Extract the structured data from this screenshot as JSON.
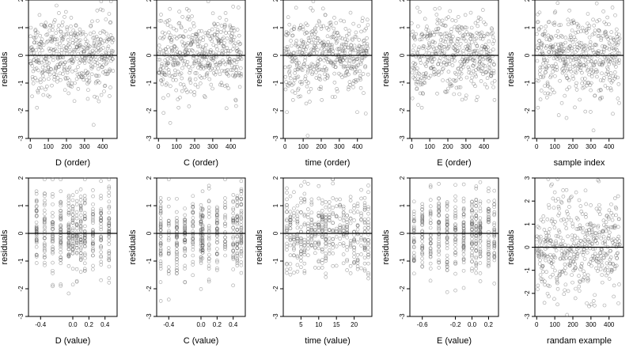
{
  "chart_data": [
    {
      "type": "scatter",
      "xlabel": "D (order)",
      "ylabel": "residuals",
      "xlim": [
        -10,
        480
      ],
      "ylim": [
        -3,
        2
      ],
      "xticks": [
        0,
        100,
        200,
        300,
        400
      ],
      "xtick_labels": [
        "0",
        "100",
        "200",
        "300",
        "400"
      ],
      "yticks": [
        -3,
        -2,
        -1,
        0,
        1,
        2
      ],
      "ytick_labels": [
        "-3",
        "-2",
        "-1",
        "0",
        "1",
        "2"
      ],
      "hline": 0,
      "x_kind": "index",
      "n": 460,
      "cols": [],
      "y": [],
      "xvals": []
    },
    {
      "type": "scatter",
      "xlabel": "C (order)",
      "ylabel": "residuals",
      "xlim": [
        -10,
        480
      ],
      "ylim": [
        -3,
        2
      ],
      "xticks": [
        0,
        100,
        200,
        300,
        400
      ],
      "xtick_labels": [
        "0",
        "100",
        "200",
        "300",
        "400"
      ],
      "yticks": [
        -3,
        -2,
        -1,
        0,
        1,
        2
      ],
      "ytick_labels": [
        "-3",
        "-2",
        "-1",
        "0",
        "1",
        "2"
      ],
      "hline": 0,
      "x_kind": "index",
      "n": 460,
      "cols": [],
      "y": [],
      "xvals": []
    },
    {
      "type": "scatter",
      "xlabel": "time (order)",
      "ylabel": "residuals",
      "xlim": [
        -10,
        480
      ],
      "ylim": [
        -3,
        2
      ],
      "xticks": [
        0,
        100,
        200,
        300,
        400
      ],
      "xtick_labels": [
        "0",
        "100",
        "200",
        "300",
        "400"
      ],
      "yticks": [
        -3,
        -2,
        -1,
        0,
        1,
        2
      ],
      "ytick_labels": [
        "-3",
        "-2",
        "-1",
        "0",
        "1",
        "2"
      ],
      "hline": 0,
      "x_kind": "index",
      "n": 460,
      "cols": [],
      "y": [],
      "xvals": []
    },
    {
      "type": "scatter",
      "xlabel": "E (order)",
      "ylabel": "residuals",
      "xlim": [
        -10,
        480
      ],
      "ylim": [
        -3,
        2
      ],
      "xticks": [
        0,
        100,
        200,
        300,
        400
      ],
      "xtick_labels": [
        "0",
        "100",
        "200",
        "300",
        "400"
      ],
      "yticks": [
        -3,
        -2,
        -1,
        0,
        1,
        2
      ],
      "ytick_labels": [
        "-3",
        "-2",
        "-1",
        "0",
        "1",
        "2"
      ],
      "hline": 0,
      "x_kind": "index",
      "n": 460,
      "cols": [],
      "y": [],
      "xvals": []
    },
    {
      "type": "scatter",
      "xlabel": "sample index",
      "ylabel": "residuals",
      "xlim": [
        -10,
        480
      ],
      "ylim": [
        -3,
        2
      ],
      "xticks": [
        0,
        100,
        200,
        300,
        400
      ],
      "xtick_labels": [
        "0",
        "100",
        "200",
        "300",
        "400"
      ],
      "yticks": [
        -3,
        -2,
        -1,
        0,
        1,
        2
      ],
      "ytick_labels": [
        "-3",
        "-2",
        "-1",
        "0",
        "1",
        "2"
      ],
      "hline": 0,
      "x_kind": "index",
      "n": 460,
      "cols": [],
      "y": [],
      "xvals": []
    },
    {
      "type": "scatter",
      "xlabel": "D (value)",
      "ylabel": "residuals",
      "xlim": [
        -0.55,
        0.55
      ],
      "ylim": [
        -3,
        2
      ],
      "xticks": [
        -0.4,
        0,
        0.2,
        0.4
      ],
      "xtick_labels": [
        "-0.4",
        "0.0",
        "0.2",
        "0.4"
      ],
      "yticks": [
        -3,
        -2,
        -1,
        0,
        1,
        2
      ],
      "ytick_labels": [
        "-3",
        "-2",
        "-1",
        "0",
        "1",
        "2"
      ],
      "hline": 0,
      "x_kind": "columns",
      "n": 460,
      "cols": [
        -0.45,
        -0.35,
        -0.25,
        -0.15,
        -0.05,
        0.0,
        0.05,
        0.1,
        0.15,
        0.25,
        0.35,
        0.45
      ],
      "y": [],
      "xvals": []
    },
    {
      "type": "scatter",
      "xlabel": "C (value)",
      "ylabel": "residuals",
      "xlim": [
        -0.55,
        0.55
      ],
      "ylim": [
        -3,
        2
      ],
      "xticks": [
        -0.4,
        0,
        0.2,
        0.4
      ],
      "xtick_labels": [
        "-0.4",
        "0.0",
        "0.2",
        "0.4"
      ],
      "yticks": [
        -3,
        -2,
        -1,
        0,
        1,
        2
      ],
      "ytick_labels": [
        "-3",
        "-2",
        "-1",
        "0",
        "1",
        "2"
      ],
      "hline": 0,
      "x_kind": "columns",
      "n": 460,
      "cols": [
        -0.5,
        -0.4,
        -0.3,
        -0.2,
        -0.1,
        0.0,
        0.02,
        0.1,
        0.2,
        0.3,
        0.4,
        0.45,
        0.5
      ],
      "y": [],
      "xvals": []
    },
    {
      "type": "scatter",
      "xlabel": "time (value)",
      "ylabel": "residuals",
      "xlim": [
        0,
        25
      ],
      "ylim": [
        -3,
        2
      ],
      "xticks": [
        5,
        10,
        15,
        20
      ],
      "xtick_labels": [
        "5",
        "10",
        "15",
        "20"
      ],
      "yticks": [
        -3,
        -2,
        -1,
        0,
        1,
        2
      ],
      "ytick_labels": [
        "-3",
        "-2",
        "-1",
        "0",
        "1",
        "2"
      ],
      "hline": 0,
      "x_kind": "columns",
      "n": 460,
      "cols": [
        1,
        2,
        3,
        4,
        5,
        6,
        7,
        8,
        9,
        10,
        11,
        12,
        13,
        14,
        15,
        16,
        17,
        18,
        19,
        20,
        21,
        22,
        23,
        24
      ],
      "y": [],
      "xvals": []
    },
    {
      "type": "scatter",
      "xlabel": "E (value)",
      "ylabel": "residuals",
      "xlim": [
        -0.75,
        0.32
      ],
      "ylim": [
        -3,
        2
      ],
      "xticks": [
        -0.6,
        -0.2,
        0,
        0.2
      ],
      "xtick_labels": [
        "-0.6",
        "-0.2",
        "0.0",
        "0.2"
      ],
      "yticks": [
        -3,
        -2,
        -1,
        0,
        1,
        2
      ],
      "ytick_labels": [
        "-3",
        "-2",
        "-1",
        "0",
        "1",
        "2"
      ],
      "hline": 0,
      "x_kind": "columns",
      "n": 460,
      "cols": [
        -0.7,
        -0.6,
        -0.5,
        -0.4,
        -0.3,
        -0.2,
        -0.1,
        0.0,
        0.05,
        0.1,
        0.2,
        0.27
      ],
      "y": [],
      "xvals": []
    },
    {
      "type": "scatter",
      "xlabel": "randam example",
      "ylabel": "residuals",
      "xlim": [
        -10,
        480
      ],
      "ylim": [
        -3,
        3
      ],
      "xticks": [
        0,
        100,
        200,
        300,
        400
      ],
      "xtick_labels": [
        "0",
        "100",
        "200",
        "300",
        "400"
      ],
      "yticks": [
        -3,
        -2,
        -1,
        0,
        1,
        2,
        3
      ],
      "ytick_labels": [
        "-3",
        "-2",
        "-1",
        "0",
        "1",
        "2",
        "3"
      ],
      "hline": 0,
      "x_kind": "index",
      "n": 460,
      "cols": [],
      "y": [],
      "xvals": []
    }
  ]
}
